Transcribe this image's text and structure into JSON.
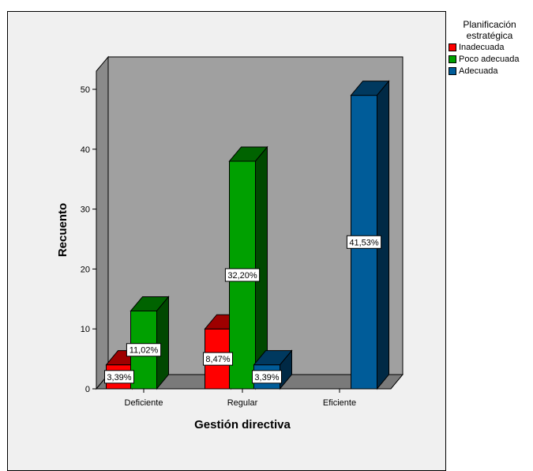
{
  "chart_data": {
    "type": "bar",
    "title": "",
    "xlabel": "Gestión directiva",
    "ylabel": "Recuento",
    "ylim": [
      0,
      50
    ],
    "yticks": [
      "0",
      "10",
      "20",
      "30",
      "40",
      "50"
    ],
    "categories": [
      "Deficiente",
      "Regular",
      "Eficiente"
    ],
    "legend_title": "Planificación estratégica",
    "legend_position": "right",
    "series": [
      {
        "name": "Inadecuada",
        "color": "#ff0000",
        "values": [
          4,
          10,
          0
        ],
        "labels": [
          "3,39%",
          "8,47%",
          ""
        ]
      },
      {
        "name": "Poco adecuada",
        "color": "#00a000",
        "values": [
          13,
          38,
          0
        ],
        "labels": [
          "11,02%",
          "32,20%",
          ""
        ]
      },
      {
        "name": "Adecuada",
        "color": "#005c99",
        "values": [
          0,
          4,
          49
        ],
        "labels": [
          "",
          "3,39%",
          "41,53%"
        ]
      }
    ]
  }
}
